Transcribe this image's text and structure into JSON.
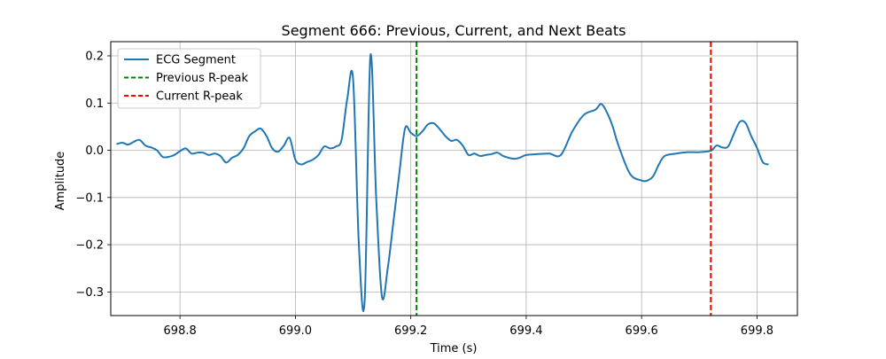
{
  "chart_data": {
    "type": "line",
    "title": "Segment 666: Previous, Current, and Next Beats",
    "xlabel": "Time (s)",
    "ylabel": "Amplitude",
    "xlim": [
      698.68,
      699.87
    ],
    "ylim": [
      -0.35,
      0.23
    ],
    "x_ticks": [
      698.8,
      699.0,
      699.2,
      699.4,
      699.6,
      699.8
    ],
    "x_tick_labels": [
      "698.8",
      "699.0",
      "699.2",
      "699.4",
      "699.6",
      "699.8"
    ],
    "y_ticks": [
      0.2,
      0.1,
      0.0,
      -0.1,
      -0.2,
      -0.3
    ],
    "y_tick_labels": [
      "0.2",
      "0.1",
      "0.0",
      "−0.1",
      "−0.2",
      "−0.3"
    ],
    "grid": true,
    "legend_position": "top-left",
    "series": [
      {
        "name": "ECG Segment",
        "color": "#1f77b4",
        "x": [
          698.69,
          698.7,
          698.71,
          698.72,
          698.73,
          698.74,
          698.75,
          698.76,
          698.77,
          698.78,
          698.79,
          698.8,
          698.81,
          698.82,
          698.83,
          698.84,
          698.85,
          698.86,
          698.87,
          698.88,
          698.89,
          698.9,
          698.91,
          698.92,
          698.93,
          698.94,
          698.95,
          698.96,
          698.97,
          698.98,
          698.99,
          699.0,
          699.01,
          699.02,
          699.03,
          699.04,
          699.05,
          699.06,
          699.07,
          699.08,
          699.09,
          699.1,
          699.11,
          699.12,
          699.13,
          699.14,
          699.15,
          699.16,
          699.17,
          699.18,
          699.19,
          699.2,
          699.21,
          699.22,
          699.23,
          699.24,
          699.25,
          699.26,
          699.27,
          699.28,
          699.29,
          699.3,
          699.31,
          699.32,
          699.33,
          699.34,
          699.35,
          699.36,
          699.37,
          699.38,
          699.39,
          699.4,
          699.42,
          699.44,
          699.46,
          699.48,
          699.5,
          699.52,
          699.53,
          699.54,
          699.55,
          699.56,
          699.58,
          699.6,
          699.61,
          699.62,
          699.63,
          699.64,
          699.66,
          699.68,
          699.7,
          699.72,
          699.73,
          699.74,
          699.75,
          699.76,
          699.77,
          699.78,
          699.79,
          699.8,
          699.81,
          699.82
        ],
        "y": [
          0.013,
          0.016,
          0.012,
          0.018,
          0.022,
          0.01,
          0.006,
          0.0,
          -0.014,
          -0.014,
          -0.01,
          -0.002,
          0.004,
          -0.007,
          -0.005,
          -0.005,
          -0.01,
          -0.007,
          -0.012,
          -0.026,
          -0.016,
          -0.01,
          0.004,
          0.03,
          0.04,
          0.046,
          0.03,
          0.004,
          -0.003,
          0.01,
          0.026,
          -0.02,
          -0.03,
          -0.025,
          -0.02,
          -0.01,
          0.008,
          0.004,
          0.008,
          0.022,
          0.11,
          0.15,
          -0.2,
          -0.32,
          0.2,
          -0.1,
          -0.31,
          -0.25,
          -0.15,
          -0.05,
          0.046,
          0.037,
          0.03,
          0.04,
          0.055,
          0.057,
          0.045,
          0.03,
          0.02,
          0.022,
          0.01,
          -0.01,
          -0.007,
          -0.012,
          -0.01,
          -0.008,
          -0.005,
          -0.012,
          -0.016,
          -0.018,
          -0.015,
          -0.01,
          -0.008,
          -0.007,
          -0.01,
          0.04,
          0.075,
          0.086,
          0.098,
          0.08,
          0.05,
          0.01,
          -0.05,
          -0.064,
          -0.064,
          -0.055,
          -0.03,
          -0.012,
          -0.007,
          -0.004,
          -0.004,
          -0.001,
          0.01,
          0.006,
          0.008,
          0.035,
          0.06,
          0.058,
          0.03,
          0.005,
          -0.025,
          -0.03
        ]
      },
      {
        "name": "Previous R-peak",
        "color": "#008000",
        "type": "vline",
        "x": 699.21
      },
      {
        "name": "Current R-peak",
        "color": "#ff0000",
        "type": "vline",
        "x": 699.72
      }
    ]
  }
}
